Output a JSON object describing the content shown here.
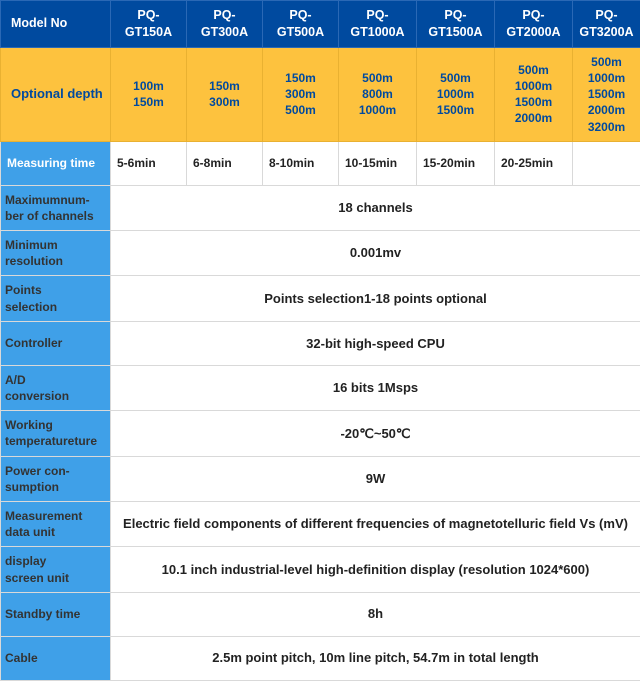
{
  "colors": {
    "header_bg": "#004a9f",
    "header_text": "#ffffff",
    "depth_bg": "#fdc23e",
    "depth_text": "#004a9f",
    "label_bg": "#3fa0e8",
    "label_text": "#ffffff",
    "cell_bg": "#ffffff",
    "cell_text": "#222222",
    "border": "#d9d9d9"
  },
  "typography": {
    "font_family": "Arial, Helvetica, sans-serif",
    "header_fontsize": 12.5,
    "cell_fontsize": 13,
    "label_fontsize": 12
  },
  "header": {
    "label": "Model No",
    "models": [
      "PQ-GT150A",
      "PQ-GT300A",
      "PQ-GT500A",
      "PQ-GT1000A",
      "PQ-GT1500A",
      "PQ-GT2000A",
      "PQ-GT3200A"
    ]
  },
  "depth": {
    "label": "Optional depth",
    "cols": [
      "100m\n150m",
      "150m\n300m",
      "150m\n300m\n500m",
      "500m\n800m\n1000m",
      "500m\n1000m\n1500m",
      "500m\n1000m\n1500m\n2000m",
      "500m\n1000m\n1500m\n2000m\n3200m"
    ]
  },
  "measuring": {
    "label": "Measuring time",
    "cols": [
      "5-6min",
      "6-8min",
      "8-10min",
      "10-15min",
      "15-20min",
      "20-25min",
      ""
    ]
  },
  "specs": [
    {
      "label": "Maximumnum-\nber of channels",
      "value": "18 channels"
    },
    {
      "label": "Minimum\nresolution",
      "value": "0.001mv"
    },
    {
      "label": "Points\nselection",
      "value": "Points selection1-18 points optional"
    },
    {
      "label": "Controller",
      "value": "32-bit high-speed CPU"
    },
    {
      "label": "A/D\nconversion",
      "value": "16 bits   1Msps"
    },
    {
      "label": "Working\ntemperatureture",
      "value": "-20℃~50℃"
    },
    {
      "label": "Power con-\nsumption",
      "value": "9W"
    },
    {
      "label": "Measurement\ndata unit",
      "value": "Electric field components of different frequencies of magnetotelluric field Vs (mV)"
    },
    {
      "label": "display\nscreen unit",
      "value": "10.1 inch industrial-level high-definition display (resolution 1024*600)"
    },
    {
      "label": "Standby time",
      "value": "8h"
    },
    {
      "label": "Cable",
      "value": "2.5m point pitch, 10m line pitch, 54.7m in total length"
    }
  ]
}
